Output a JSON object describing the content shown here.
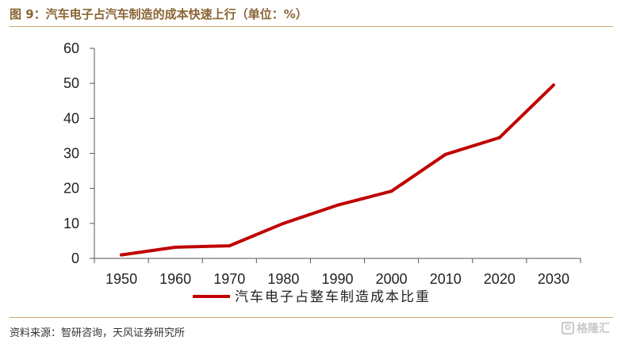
{
  "header": {
    "title": "图 9：汽车电子占汽车制造的成本快速上行（单位：%）"
  },
  "footer": {
    "source": "资料来源：智研咨询，天风证券研究所",
    "watermark": "格隆汇",
    "watermark_logo_text": "G"
  },
  "colors": {
    "series_line": "#c00000",
    "title_text": "#8a6534",
    "rule": "#c7a56e"
  },
  "chart_data": {
    "type": "line",
    "title": "",
    "xlabel": "",
    "ylabel": "",
    "categories": [
      "1950",
      "1960",
      "1970",
      "1980",
      "1990",
      "2000",
      "2010",
      "2020",
      "2030"
    ],
    "series": [
      {
        "name": "汽车电子占整车制造成本比重",
        "values": [
          1,
          3.2,
          3.6,
          10,
          15.2,
          19.2,
          29.7,
          34.5,
          49.5
        ]
      }
    ],
    "ylim": [
      0,
      60
    ],
    "yticks": [
      0,
      10,
      20,
      30,
      40,
      50,
      60
    ],
    "grid": false,
    "legend_position": "bottom"
  }
}
